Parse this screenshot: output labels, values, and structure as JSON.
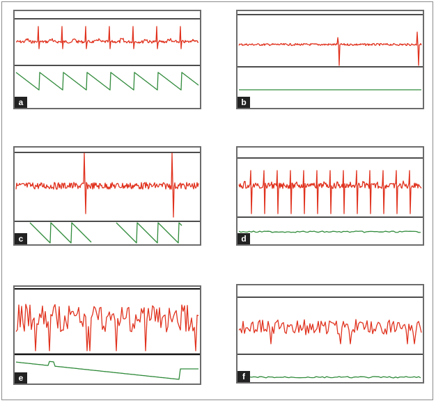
{
  "colors": {
    "ecg": "#e0321e",
    "resp": "#2f8a3a",
    "line": "#111111",
    "border": "#6b6b6b"
  },
  "panels": [
    {
      "label": "a",
      "rhythm": "regular",
      "resp_pattern": "regular-sawtooth"
    },
    {
      "label": "b",
      "rhythm": "low-amplitude-with-artifacts",
      "resp_pattern": "flat"
    },
    {
      "label": "c",
      "rhythm": "irregular-with-large-spikes",
      "resp_pattern": "intermittent-sawtooth"
    },
    {
      "label": "d",
      "rhythm": "rapid-regular",
      "resp_pattern": "flat-noisy"
    },
    {
      "label": "e",
      "rhythm": "chaotic-high-amplitude",
      "resp_pattern": "decaying"
    },
    {
      "label": "f",
      "rhythm": "fine-chaotic",
      "resp_pattern": "flat-noisy"
    }
  ]
}
